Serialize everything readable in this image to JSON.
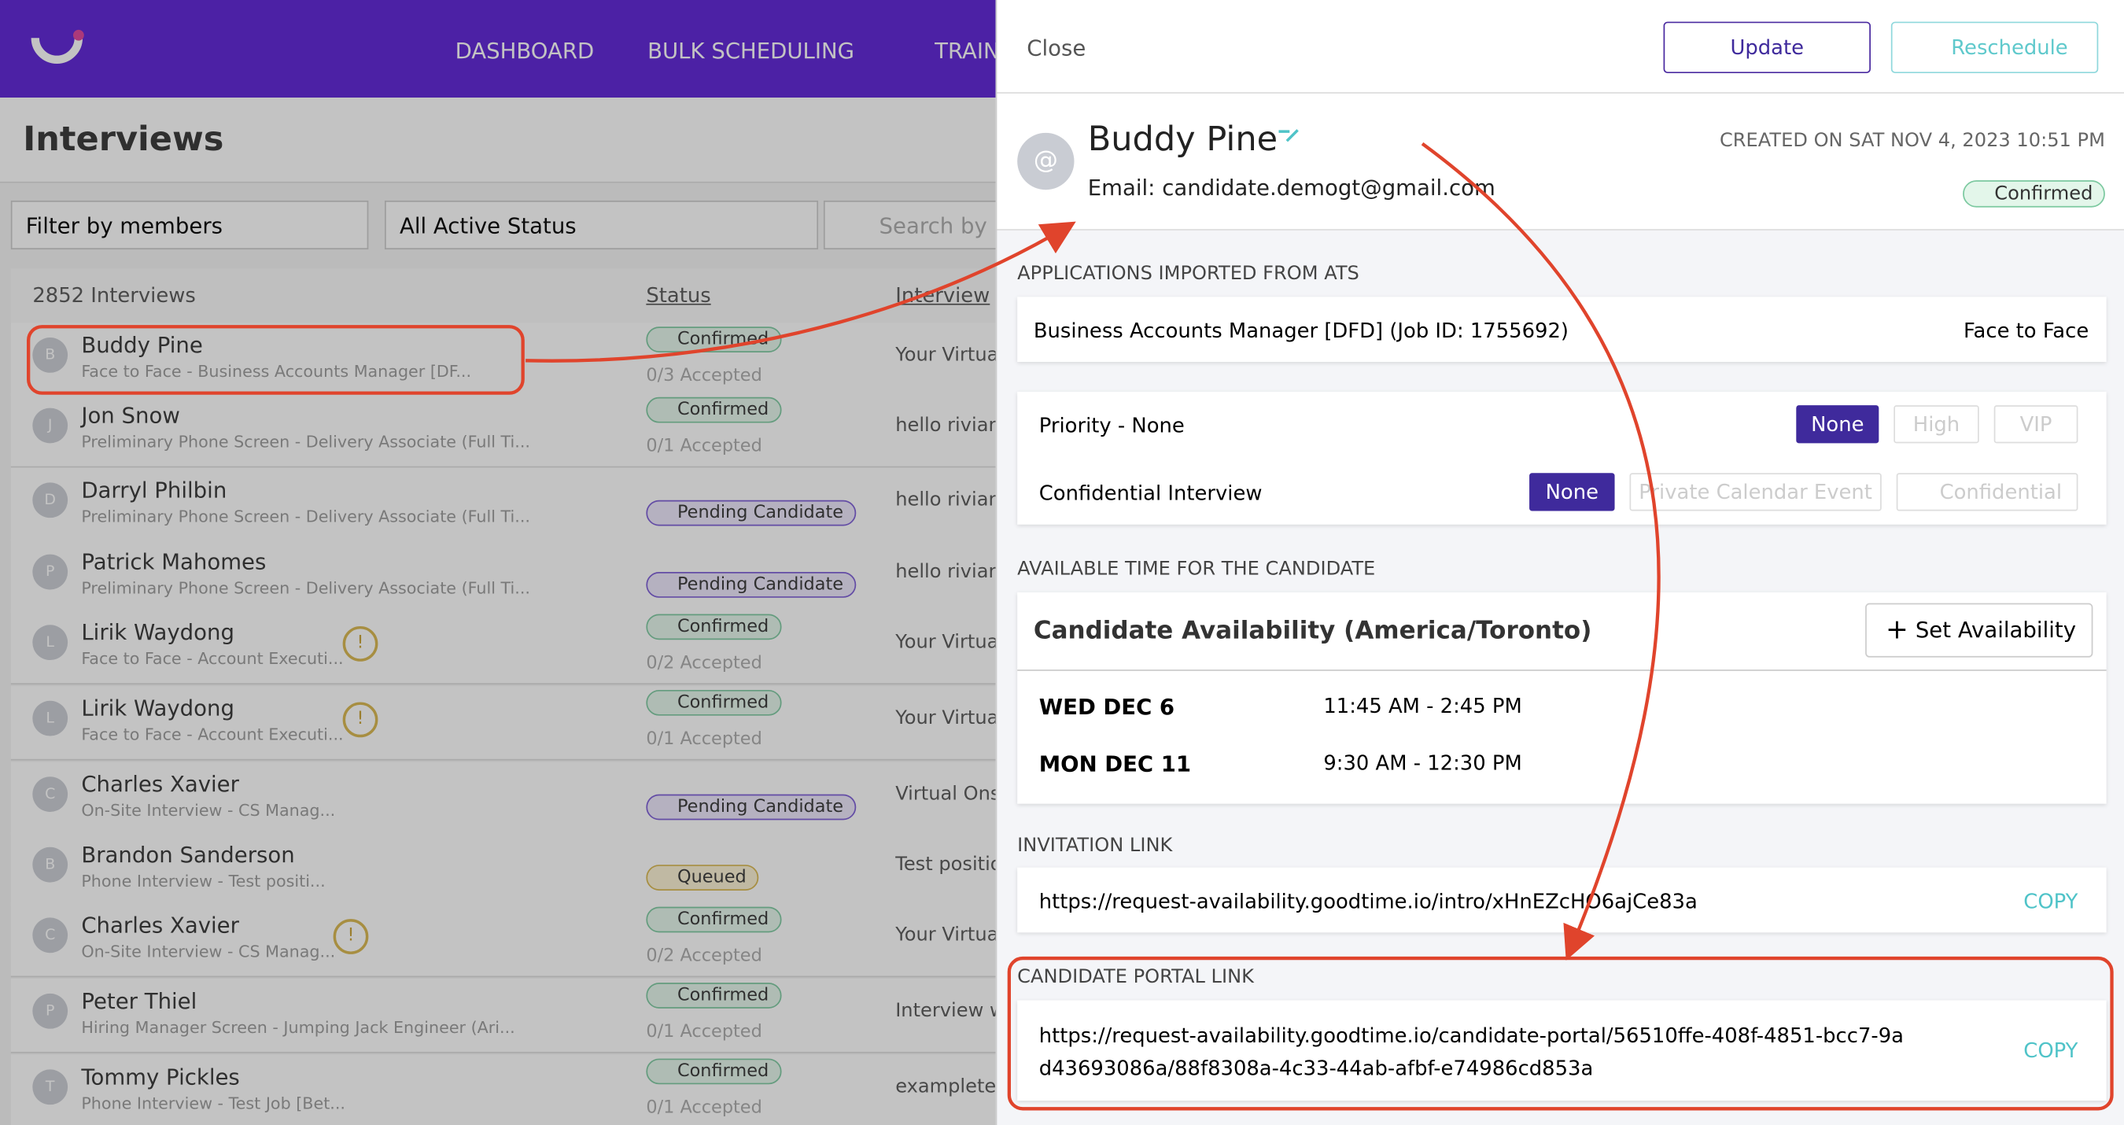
{
  "nav": {
    "items": [
      "DASHBOARD",
      "BULK SCHEDULING",
      "TRAIN"
    ]
  },
  "list": {
    "title": "Interviews",
    "filter_members": "Filter by members",
    "filter_status": "All Active Status",
    "search_placeholder": "Search by n",
    "count": "2852 Interviews",
    "columns": [
      "Status",
      "Interview"
    ],
    "rows": [
      {
        "initial": "B",
        "name": "Buddy Pine",
        "sub": "Face to Face - Business Accounts Manager [DF...",
        "status": "Confirmed",
        "accepted": "0/3 Accepted",
        "interview": "Your Virtual"
      },
      {
        "initial": "J",
        "name": "Jon Snow",
        "sub": "Preliminary Phone Screen - Delivery Associate (Full Ti...",
        "status": "Confirmed",
        "accepted": "0/1 Accepted",
        "interview": "hello rivian"
      },
      {
        "initial": "D",
        "name": "Darryl Philbin",
        "sub": "Preliminary Phone Screen - Delivery Associate (Full Ti...",
        "status": "Pending Candidate",
        "interview": "hello rivian"
      },
      {
        "initial": "P",
        "name": "Patrick Mahomes",
        "sub": "Preliminary Phone Screen - Delivery Associate (Full Ti...",
        "status": "Pending Candidate",
        "interview": "hello rivian"
      },
      {
        "initial": "L",
        "name": "Lirik Waydong",
        "sub": "Face to Face - Account Executi...",
        "warning": "!",
        "status": "Confirmed",
        "accepted": "0/2 Accepted",
        "interview": "Your Virtual"
      },
      {
        "initial": "L",
        "name": "Lirik Waydong",
        "sub": "Face to Face - Account Executi...",
        "warning": "!",
        "status": "Confirmed",
        "accepted": "0/1 Accepted",
        "interview": "Your Virtual"
      },
      {
        "initial": "C",
        "name": "Charles Xavier",
        "sub": "On-Site Interview - CS Manag...",
        "status": "Pending Candidate",
        "interview": "Virtual Onsi"
      },
      {
        "initial": "B",
        "name": "Brandon Sanderson",
        "sub": "Phone Interview - Test positi...",
        "status": "Queued",
        "interview": "Test positio"
      },
      {
        "initial": "C",
        "name": "Charles Xavier",
        "sub": "On-Site Interview - CS Manag...",
        "warning": "!",
        "status": "Confirmed",
        "accepted": "0/2 Accepted",
        "interview": "Your Virtual"
      },
      {
        "initial": "P",
        "name": "Peter Thiel",
        "sub": "Hiring Manager Screen - Jumping Jack Engineer (Ari...",
        "status": "Confirmed",
        "accepted": "0/1 Accepted",
        "interview": "Interview w"
      },
      {
        "initial": "T",
        "name": "Tommy Pickles",
        "sub": "Phone Interview - Test Job [Bet...",
        "status": "Confirmed",
        "accepted": "0/1 Accepted",
        "interview": "exampleten"
      }
    ]
  },
  "panel": {
    "close": "Close",
    "update": "Update",
    "reschedule": "Reschedule",
    "avatar": "@",
    "name": "Buddy Pine",
    "email": "Email: candidate.demogt@gmail.com",
    "created": "CREATED ON SAT NOV 4, 2023 10:51 PM",
    "status": "Confirmed",
    "applications_heading": "APPLICATIONS IMPORTED FROM ATS",
    "application": "Business Accounts Manager [DFD] (Job ID: 1755692)",
    "application_type": "Face to Face",
    "priority_label": "Priority - None",
    "priority_options": [
      "None",
      "High",
      "VIP"
    ],
    "confidential_label": "Confidential Interview",
    "confidential_options": [
      "None",
      "Private Calendar Event",
      "Confidential"
    ],
    "availability_heading": "AVAILABLE TIME FOR THE CANDIDATE",
    "availability_title": "Candidate Availability (America/Toronto)",
    "set_availability": "Set Availability",
    "slots": [
      {
        "day": "WED DEC 6",
        "time": "11:45 AM - 2:45 PM"
      },
      {
        "day": "MON DEC 11",
        "time": "9:30 AM - 12:30 PM"
      }
    ],
    "invitation_heading": "INVITATION LINK",
    "invitation_link": "https://request-availability.goodtime.io/intro/xHnEZcHO6ajCe83a",
    "invitation_copy": "COPY",
    "portal_heading": "CANDIDATE PORTAL LINK",
    "portal_link": "https://request-availability.goodtime.io/candidate-portal/56510ffe-408f-4851-bcc7-9ad43693086a/88f8308a-4c33-44ab-afbf-e74986cd853a",
    "portal_copy": "COPY"
  }
}
